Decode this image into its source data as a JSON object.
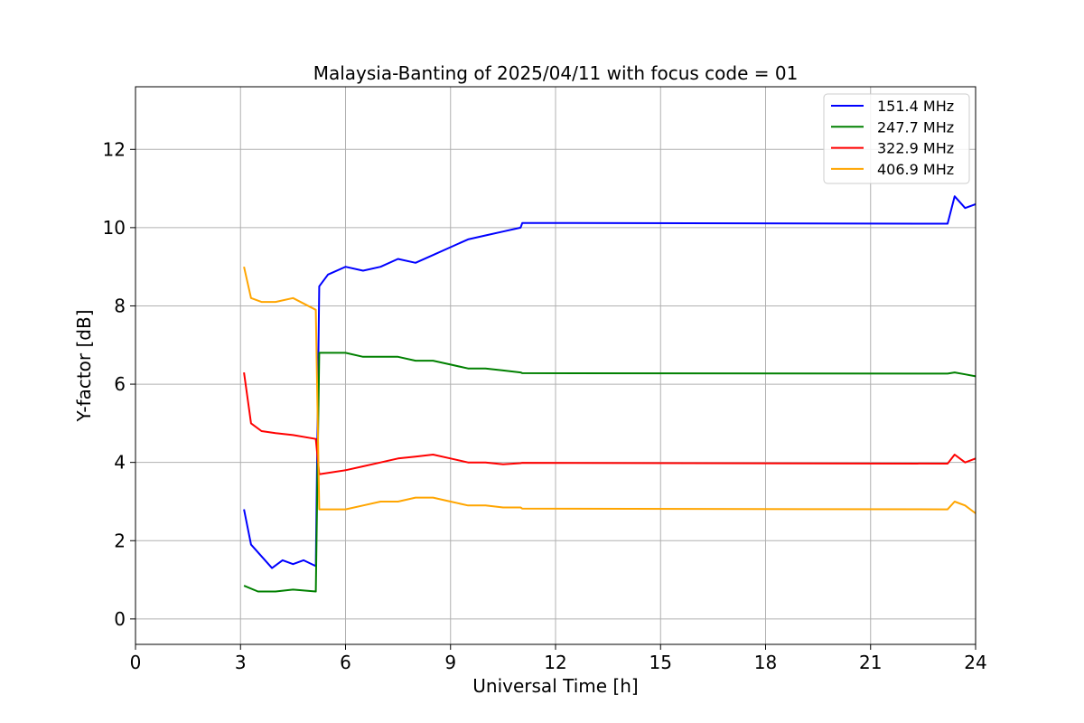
{
  "chart_data": {
    "type": "line",
    "title": "Malaysia-Banting of 2025/04/11 with focus code = 01",
    "xlabel": "Universal Time [h]",
    "ylabel": "Y-factor [dB]",
    "xlim": [
      0,
      24
    ],
    "ylim": [
      -0.65,
      13.6
    ],
    "xticks": [
      0,
      3,
      6,
      9,
      12,
      15,
      18,
      21,
      24
    ],
    "xtick_labels": [
      "0",
      "3",
      "6",
      "9",
      "12",
      "15",
      "18",
      "21",
      "24"
    ],
    "yticks": [
      0,
      2,
      4,
      6,
      8,
      10,
      12
    ],
    "ytick_labels": [
      "0",
      "2",
      "4",
      "6",
      "8",
      "10",
      "12"
    ],
    "grid": true,
    "legend_position": "top-right",
    "series": [
      {
        "name": "151.4 MHz",
        "color": "#0000ff",
        "points": [
          [
            3.1,
            2.8
          ],
          [
            3.3,
            1.9
          ],
          [
            3.6,
            1.6
          ],
          [
            3.9,
            1.3
          ],
          [
            4.2,
            1.5
          ],
          [
            4.5,
            1.4
          ],
          [
            4.8,
            1.5
          ],
          [
            5.15,
            1.35
          ],
          [
            5.25,
            8.5
          ],
          [
            5.5,
            8.8
          ],
          [
            6.0,
            9.0
          ],
          [
            6.5,
            8.9
          ],
          [
            7.0,
            9.0
          ],
          [
            7.5,
            9.2
          ],
          [
            8.0,
            9.1
          ],
          [
            8.5,
            9.3
          ],
          [
            9.0,
            9.5
          ],
          [
            9.5,
            9.7
          ],
          [
            10.0,
            9.8
          ],
          [
            10.5,
            9.9
          ],
          [
            11.0,
            10.0
          ],
          [
            11.05,
            10.12
          ],
          [
            23.2,
            10.1
          ],
          [
            23.4,
            10.8
          ],
          [
            23.7,
            10.5
          ],
          [
            24.0,
            10.6
          ]
        ]
      },
      {
        "name": "247.7 MHz",
        "color": "#008000",
        "points": [
          [
            3.1,
            0.85
          ],
          [
            3.5,
            0.7
          ],
          [
            4.0,
            0.7
          ],
          [
            4.5,
            0.75
          ],
          [
            5.15,
            0.7
          ],
          [
            5.25,
            6.8
          ],
          [
            6.0,
            6.8
          ],
          [
            6.5,
            6.7
          ],
          [
            7.0,
            6.7
          ],
          [
            7.5,
            6.7
          ],
          [
            8.0,
            6.6
          ],
          [
            8.5,
            6.6
          ],
          [
            9.0,
            6.5
          ],
          [
            9.5,
            6.4
          ],
          [
            10.0,
            6.4
          ],
          [
            10.5,
            6.35
          ],
          [
            11.0,
            6.3
          ],
          [
            11.05,
            6.28
          ],
          [
            23.2,
            6.27
          ],
          [
            23.4,
            6.3
          ],
          [
            23.7,
            6.25
          ],
          [
            24.0,
            6.2
          ]
        ]
      },
      {
        "name": "322.9 MHz",
        "color": "#ff0000",
        "points": [
          [
            3.1,
            6.3
          ],
          [
            3.3,
            5.0
          ],
          [
            3.6,
            4.8
          ],
          [
            4.0,
            4.75
          ],
          [
            4.5,
            4.7
          ],
          [
            5.15,
            4.6
          ],
          [
            5.25,
            3.7
          ],
          [
            6.0,
            3.8
          ],
          [
            6.5,
            3.9
          ],
          [
            7.0,
            4.0
          ],
          [
            7.5,
            4.1
          ],
          [
            8.0,
            4.15
          ],
          [
            8.5,
            4.2
          ],
          [
            9.0,
            4.1
          ],
          [
            9.5,
            4.0
          ],
          [
            10.0,
            4.0
          ],
          [
            10.5,
            3.95
          ],
          [
            11.0,
            3.98
          ],
          [
            11.05,
            3.99
          ],
          [
            23.2,
            3.97
          ],
          [
            23.4,
            4.2
          ],
          [
            23.7,
            4.0
          ],
          [
            24.0,
            4.1
          ]
        ]
      },
      {
        "name": "406.9 MHz",
        "color": "#ffa500",
        "points": [
          [
            3.1,
            9.0
          ],
          [
            3.3,
            8.2
          ],
          [
            3.6,
            8.1
          ],
          [
            4.0,
            8.1
          ],
          [
            4.5,
            8.2
          ],
          [
            5.15,
            7.9
          ],
          [
            5.25,
            2.8
          ],
          [
            6.0,
            2.8
          ],
          [
            6.5,
            2.9
          ],
          [
            7.0,
            3.0
          ],
          [
            7.5,
            3.0
          ],
          [
            8.0,
            3.1
          ],
          [
            8.5,
            3.1
          ],
          [
            9.0,
            3.0
          ],
          [
            9.5,
            2.9
          ],
          [
            10.0,
            2.9
          ],
          [
            10.5,
            2.85
          ],
          [
            11.0,
            2.85
          ],
          [
            11.05,
            2.82
          ],
          [
            23.2,
            2.8
          ],
          [
            23.4,
            3.0
          ],
          [
            23.7,
            2.9
          ],
          [
            24.0,
            2.7
          ]
        ]
      }
    ]
  }
}
